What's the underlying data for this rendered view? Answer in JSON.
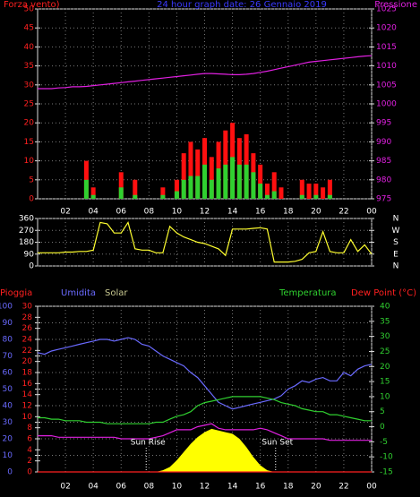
{
  "chart_data": [
    {
      "type": "combo",
      "title": "24 hour graph date: 26 Gennaio 2019",
      "title_color": "#3a3aff",
      "y_label": "Forza vento)",
      "y2_label": "Pressione",
      "y_color": "#ff2020",
      "y2_color": "#e020e0",
      "xlim": [
        0,
        24
      ],
      "xticks": [
        {
          "value": 2,
          "label": "02"
        },
        {
          "value": 4,
          "label": "04"
        },
        {
          "value": 6,
          "label": "06"
        },
        {
          "value": 8,
          "label": "08"
        },
        10,
        12,
        14,
        16,
        18,
        20,
        22,
        {
          "value": 24,
          "label": "00"
        }
      ],
      "ylim": [
        0,
        50
      ],
      "yticks": [
        0,
        5,
        10,
        15,
        20,
        25,
        30,
        35,
        40,
        45,
        50
      ],
      "y2lim": [
        975,
        1025
      ],
      "y2ticks": [
        975,
        980,
        985,
        990,
        995,
        1000,
        1005,
        1010,
        1015,
        1020,
        1025
      ],
      "grid": true,
      "x": [
        0,
        0.5,
        1,
        1.5,
        2,
        2.5,
        3,
        3.5,
        4,
        4.5,
        5,
        5.5,
        6,
        6.5,
        7,
        7.5,
        8,
        8.5,
        9,
        9.5,
        10,
        10.5,
        11,
        11.5,
        12,
        12.5,
        13,
        13.5,
        14,
        14.5,
        15,
        15.5,
        16,
        16.5,
        17,
        17.5,
        18,
        18.5,
        19,
        19.5,
        20,
        20.5,
        21,
        21.5,
        22,
        22.5,
        23,
        23.5,
        24
      ],
      "series": [
        {
          "mark": "bar",
          "axis": "y",
          "color": "#ff1010",
          "values": [
            0,
            0,
            0,
            0,
            0,
            0,
            0,
            10,
            3,
            0,
            0,
            0,
            7,
            0,
            5,
            0,
            0,
            0,
            3,
            0,
            5,
            12,
            15,
            13,
            16,
            11,
            15,
            18,
            20,
            16,
            17,
            12,
            9,
            4,
            7,
            3,
            0,
            0,
            5,
            4,
            4,
            3,
            5,
            0,
            0,
            0,
            0,
            0,
            0
          ]
        },
        {
          "mark": "bar",
          "axis": "y",
          "color": "#30d030",
          "values": [
            0,
            0,
            0,
            0,
            0,
            0,
            0,
            5,
            1,
            0,
            0,
            0,
            3,
            0,
            1,
            0,
            0,
            0,
            1,
            0,
            2,
            5,
            6,
            6,
            9,
            5,
            8,
            9,
            11,
            9,
            9,
            7,
            4,
            1,
            2,
            0,
            0,
            0,
            1,
            0,
            1,
            0,
            1,
            0,
            0,
            0,
            0,
            0,
            0
          ]
        },
        {
          "mark": "line",
          "axis": "y2",
          "color": "#e020e0",
          "values": [
            1004,
            1004,
            1004,
            1004.2,
            1004.3,
            1004.5,
            1004.5,
            1004.6,
            1004.8,
            1005,
            1005.2,
            1005.4,
            1005.6,
            1005.8,
            1006,
            1006.2,
            1006.4,
            1006.6,
            1006.8,
            1007,
            1007.2,
            1007.4,
            1007.6,
            1007.8,
            1008,
            1008,
            1007.9,
            1007.8,
            1007.7,
            1007.7,
            1007.8,
            1008,
            1008.3,
            1008.6,
            1009,
            1009.4,
            1009.8,
            1010.2,
            1010.6,
            1011,
            1011.2,
            1011.4,
            1011.6,
            1011.8,
            1012,
            1012.2,
            1012.4,
            1012.6,
            1012.7
          ]
        }
      ]
    },
    {
      "type": "line",
      "y_color": "#ffffff",
      "y2_color": "#ffffff",
      "xlim": [
        0,
        24
      ],
      "ylim": [
        0,
        360
      ],
      "yticks": [
        0,
        90,
        180,
        270,
        360
      ],
      "y2lim": [
        0,
        360
      ],
      "y2ticks": [
        {
          "value": 0,
          "label": "N"
        },
        {
          "value": 90,
          "label": "E"
        },
        {
          "value": 180,
          "label": "S"
        },
        {
          "value": 270,
          "label": "W"
        },
        {
          "value": 360,
          "label": "N"
        }
      ],
      "grid": true,
      "x": [
        0,
        0.5,
        1,
        1.5,
        2,
        2.5,
        3,
        3.5,
        4,
        4.5,
        5,
        5.5,
        6,
        6.5,
        7,
        7.5,
        8,
        8.5,
        9,
        9.5,
        10,
        10.5,
        11,
        11.5,
        12,
        12.5,
        13,
        13.5,
        14,
        14.5,
        15,
        15.5,
        16,
        16.5,
        17,
        17.5,
        18,
        18.5,
        19,
        19.5,
        20,
        20.5,
        21,
        21.5,
        22,
        22.5,
        23,
        23.5,
        24
      ],
      "series": [
        {
          "mark": "line",
          "axis": "y",
          "color": "#ffff30",
          "values": [
            100,
            100,
            100,
            100,
            105,
            105,
            110,
            110,
            120,
            330,
            320,
            250,
            250,
            330,
            130,
            120,
            120,
            100,
            100,
            300,
            250,
            220,
            200,
            180,
            170,
            150,
            130,
            80,
            280,
            280,
            280,
            285,
            290,
            280,
            30,
            30,
            30,
            35,
            50,
            100,
            110,
            260,
            110,
            100,
            100,
            200,
            110,
            160,
            90
          ]
        }
      ]
    },
    {
      "type": "line",
      "y_color": "#6a6aff",
      "y2_color": "#30d030",
      "y3_color": "#ff2020",
      "xlim": [
        0,
        24
      ],
      "xticks": [
        {
          "value": 2,
          "label": "02"
        },
        {
          "value": 4,
          "label": "04"
        },
        {
          "value": 6,
          "label": "06"
        },
        {
          "value": 8,
          "label": "08"
        },
        10,
        12,
        14,
        16,
        18,
        20,
        22,
        {
          "value": 24,
          "label": "00"
        }
      ],
      "ylim": [
        0,
        100
      ],
      "yticks": [
        0,
        10,
        20,
        30,
        40,
        50,
        60,
        70,
        80,
        90,
        100
      ],
      "y2lim": [
        -15,
        40
      ],
      "y2ticks": [
        -15,
        -10,
        -5,
        0,
        5,
        10,
        15,
        20,
        25,
        30,
        35,
        40
      ],
      "y3lim": [
        0,
        30
      ],
      "y3ticks": [
        0,
        2,
        4,
        6,
        8,
        10,
        12,
        14,
        16,
        18,
        20,
        22,
        24,
        26,
        28,
        30
      ],
      "grid": true,
      "annotations": [
        {
          "text": "Sun Rise",
          "x": 7.8
        },
        {
          "text": "Sun Set",
          "x": 17.1
        }
      ],
      "x": [
        0,
        0.5,
        1,
        1.5,
        2,
        2.5,
        3,
        3.5,
        4,
        4.5,
        5,
        5.5,
        6,
        6.5,
        7,
        7.5,
        8,
        8.5,
        9,
        9.5,
        10,
        10.5,
        11,
        11.5,
        12,
        12.5,
        13,
        13.5,
        14,
        14.5,
        15,
        15.5,
        16,
        16.5,
        17,
        17.5,
        18,
        18.5,
        19,
        19.5,
        20,
        20.5,
        21,
        21.5,
        22,
        22.5,
        23,
        23.5,
        24
      ],
      "series": [
        {
          "name": "Pioggia",
          "mark": "line",
          "axis": "y3",
          "color": "#ff2020",
          "values": [
            0,
            0,
            0,
            0,
            0,
            0,
            0,
            0,
            0,
            0,
            0,
            0,
            0,
            0,
            0,
            0,
            0,
            0,
            0,
            0,
            0,
            0,
            0,
            0,
            0,
            0,
            0,
            0,
            0,
            0,
            0,
            0,
            0,
            0,
            0,
            0,
            0,
            0,
            0,
            0,
            0,
            0,
            0,
            0,
            0,
            0,
            0,
            0,
            0
          ]
        },
        {
          "name": "Umidita",
          "mark": "line",
          "axis": "y",
          "color": "#6a6aff",
          "values": [
            72,
            71,
            73,
            74,
            75,
            76,
            77,
            78,
            79,
            80,
            80,
            79,
            80,
            81,
            80,
            77,
            76,
            73,
            70,
            68,
            66,
            64,
            60,
            57,
            52,
            47,
            42,
            40,
            38,
            39,
            40,
            41,
            42,
            43,
            44,
            46,
            50,
            52,
            55,
            54,
            56,
            57,
            55,
            55,
            60,
            58,
            62,
            64,
            65
          ]
        },
        {
          "name": "Solar",
          "mark": "area",
          "axis": "y",
          "color": "#ffff00",
          "label_color": "#c8c890",
          "values": [
            0,
            0,
            0,
            0,
            0,
            0,
            0,
            0,
            0,
            0,
            0,
            0,
            0,
            0,
            0,
            0,
            0,
            0,
            1,
            3,
            7,
            12,
            17,
            21,
            24,
            26,
            25,
            24,
            23,
            20,
            15,
            9,
            4,
            1,
            0,
            0,
            0,
            0,
            0,
            0,
            0,
            0,
            0,
            0,
            0,
            0,
            0,
            0,
            0
          ]
        },
        {
          "name": "Temperatura",
          "mark": "line",
          "axis": "y2",
          "color": "#30d030",
          "values": [
            3,
            3,
            2.5,
            2.5,
            2,
            2,
            2,
            1.5,
            1.5,
            1.5,
            1,
            1,
            1,
            1,
            1,
            1,
            1,
            1.5,
            1.5,
            2.5,
            3.5,
            4,
            5,
            7,
            8,
            8.5,
            9,
            9.5,
            10,
            10,
            10,
            10,
            10,
            9.5,
            9,
            8,
            7.5,
            7,
            6,
            5.5,
            5,
            5,
            4,
            4,
            3.5,
            3,
            2.5,
            2,
            2
          ]
        },
        {
          "name": "Dew Point (°C)",
          "mark": "line",
          "axis": "y2",
          "color": "#e020e0",
          "label_color": "#ff2020",
          "values": [
            -3,
            -3,
            -3,
            -3.5,
            -3.5,
            -3.5,
            -3.5,
            -3.5,
            -3.5,
            -3.5,
            -3.5,
            -3.5,
            -4,
            -4,
            -4,
            -4,
            -4,
            -3.5,
            -3,
            -2,
            -1,
            -1,
            -1,
            0,
            0.5,
            1,
            -0.5,
            -1,
            -1,
            -1,
            -1,
            -1,
            -0.5,
            -1,
            -2,
            -3,
            -4,
            -4,
            -4,
            -4,
            -4,
            -4,
            -4.5,
            -4.5,
            -4.5,
            -4.5,
            -4.5,
            -4.5,
            -4.5
          ]
        }
      ]
    }
  ]
}
